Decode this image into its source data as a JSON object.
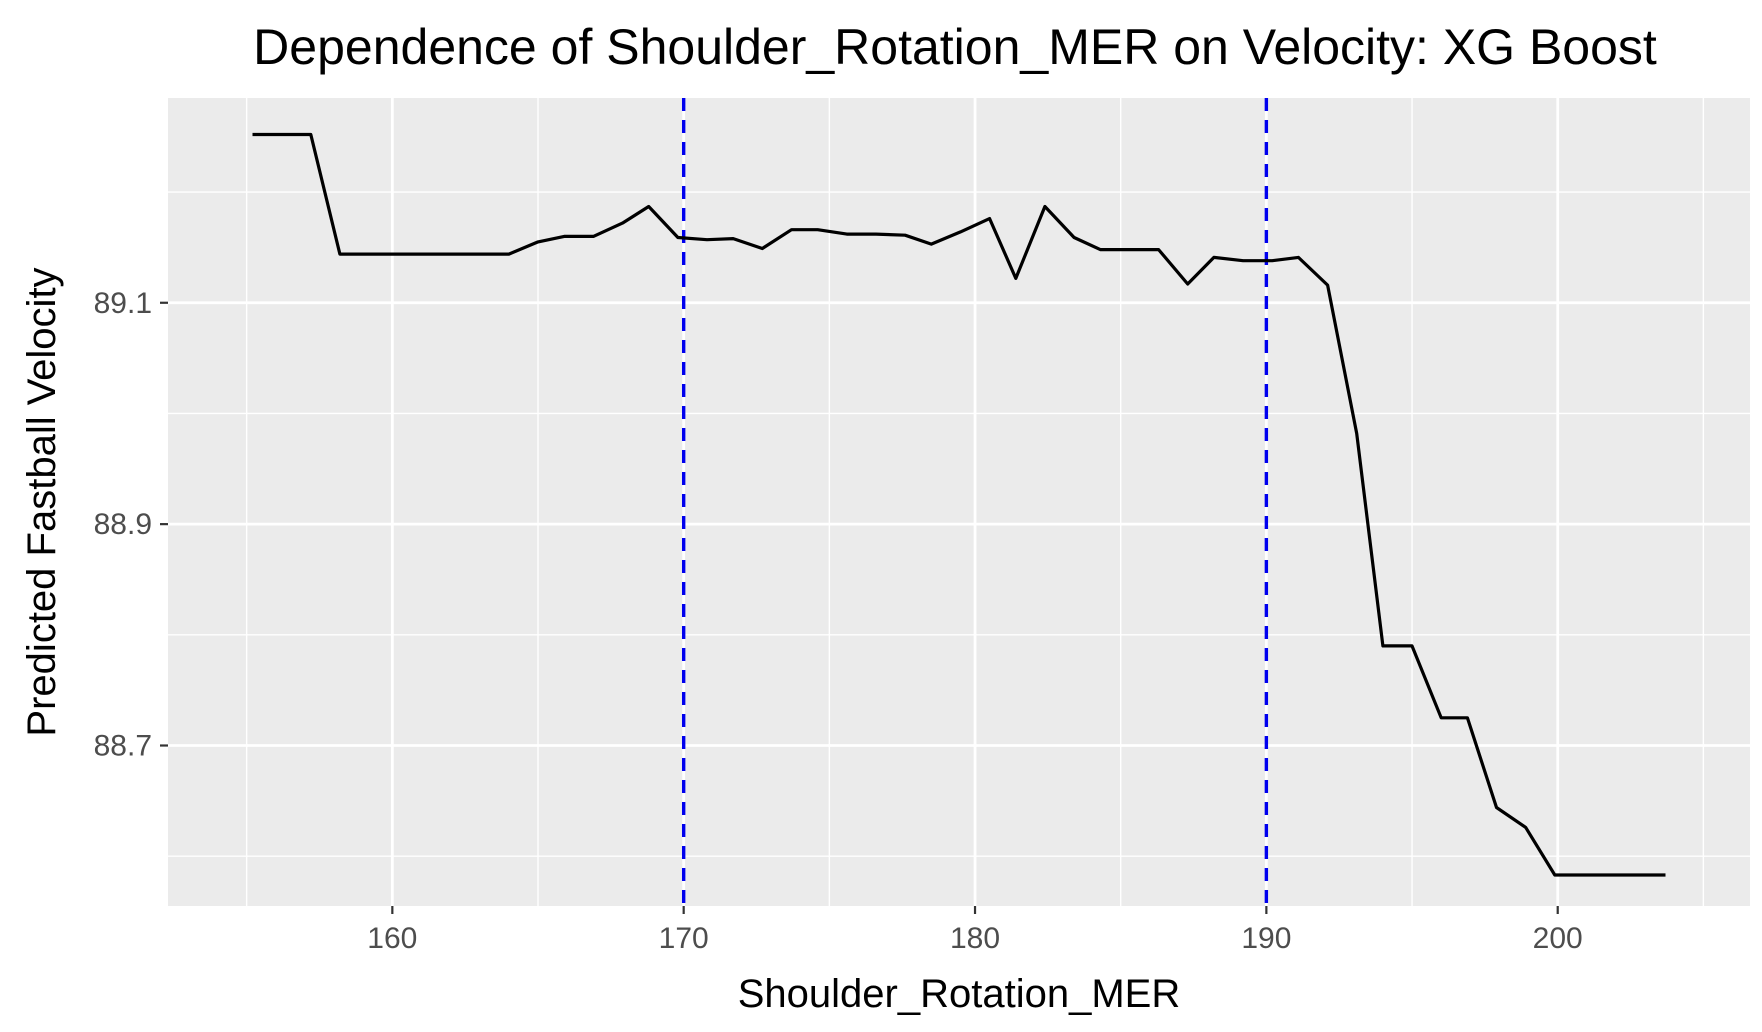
{
  "chart_data": {
    "type": "line",
    "title": "Dependence of Shoulder_Rotation_MER on Velocity: XG Boost",
    "xlabel": "Shoulder_Rotation_MER",
    "ylabel": "Predicted Fastball Velocity",
    "xlim": [
      152.3,
      206.6
    ],
    "ylim": [
      88.555,
      89.285
    ],
    "x_ticks": [
      160,
      170,
      180,
      190,
      200
    ],
    "y_ticks": [
      88.7,
      88.9,
      89.1
    ],
    "x_tick_labels": [
      "160",
      "170",
      "180",
      "190",
      "200"
    ],
    "y_tick_labels": [
      "88.7",
      "88.9",
      "89.1"
    ],
    "grid": true,
    "legend": "none",
    "series": [
      {
        "color": "#000000",
        "x": [
          155.2,
          157.2,
          158.2,
          159.1,
          160.1,
          161.1,
          162.0,
          163.0,
          164.0,
          165.0,
          165.9,
          166.9,
          167.9,
          168.8,
          169.8,
          170.8,
          171.7,
          172.7,
          173.7,
          174.6,
          175.6,
          176.6,
          177.6,
          178.5,
          179.5,
          180.5,
          181.4,
          182.4,
          183.4,
          184.3,
          185.3,
          186.3,
          187.3,
          188.2,
          189.2,
          190.2,
          191.1,
          192.1,
          193.1,
          194.0,
          195.0,
          196.0,
          196.9,
          197.9,
          198.9,
          199.9,
          200.8,
          201.8,
          202.8,
          203.7
        ],
        "y": [
          89.252,
          89.252,
          89.144,
          89.144,
          89.144,
          89.144,
          89.144,
          89.144,
          89.144,
          89.155,
          89.16,
          89.16,
          89.172,
          89.187,
          89.159,
          89.157,
          89.158,
          89.149,
          89.166,
          89.166,
          89.162,
          89.162,
          89.161,
          89.153,
          89.164,
          89.176,
          89.122,
          89.187,
          89.159,
          89.148,
          89.148,
          89.148,
          89.117,
          89.141,
          89.138,
          89.138,
          89.141,
          89.116,
          88.982,
          88.79,
          88.79,
          88.725,
          88.725,
          88.644,
          88.626,
          88.583,
          88.583,
          88.583,
          88.583,
          88.583
        ]
      }
    ],
    "reference_lines": [
      {
        "axis": "x",
        "value": 170,
        "color": "#0000ee",
        "style": "dashed"
      },
      {
        "axis": "x",
        "value": 190,
        "color": "#0000ee",
        "style": "dashed"
      }
    ],
    "panel_background": "#ebebeb"
  }
}
